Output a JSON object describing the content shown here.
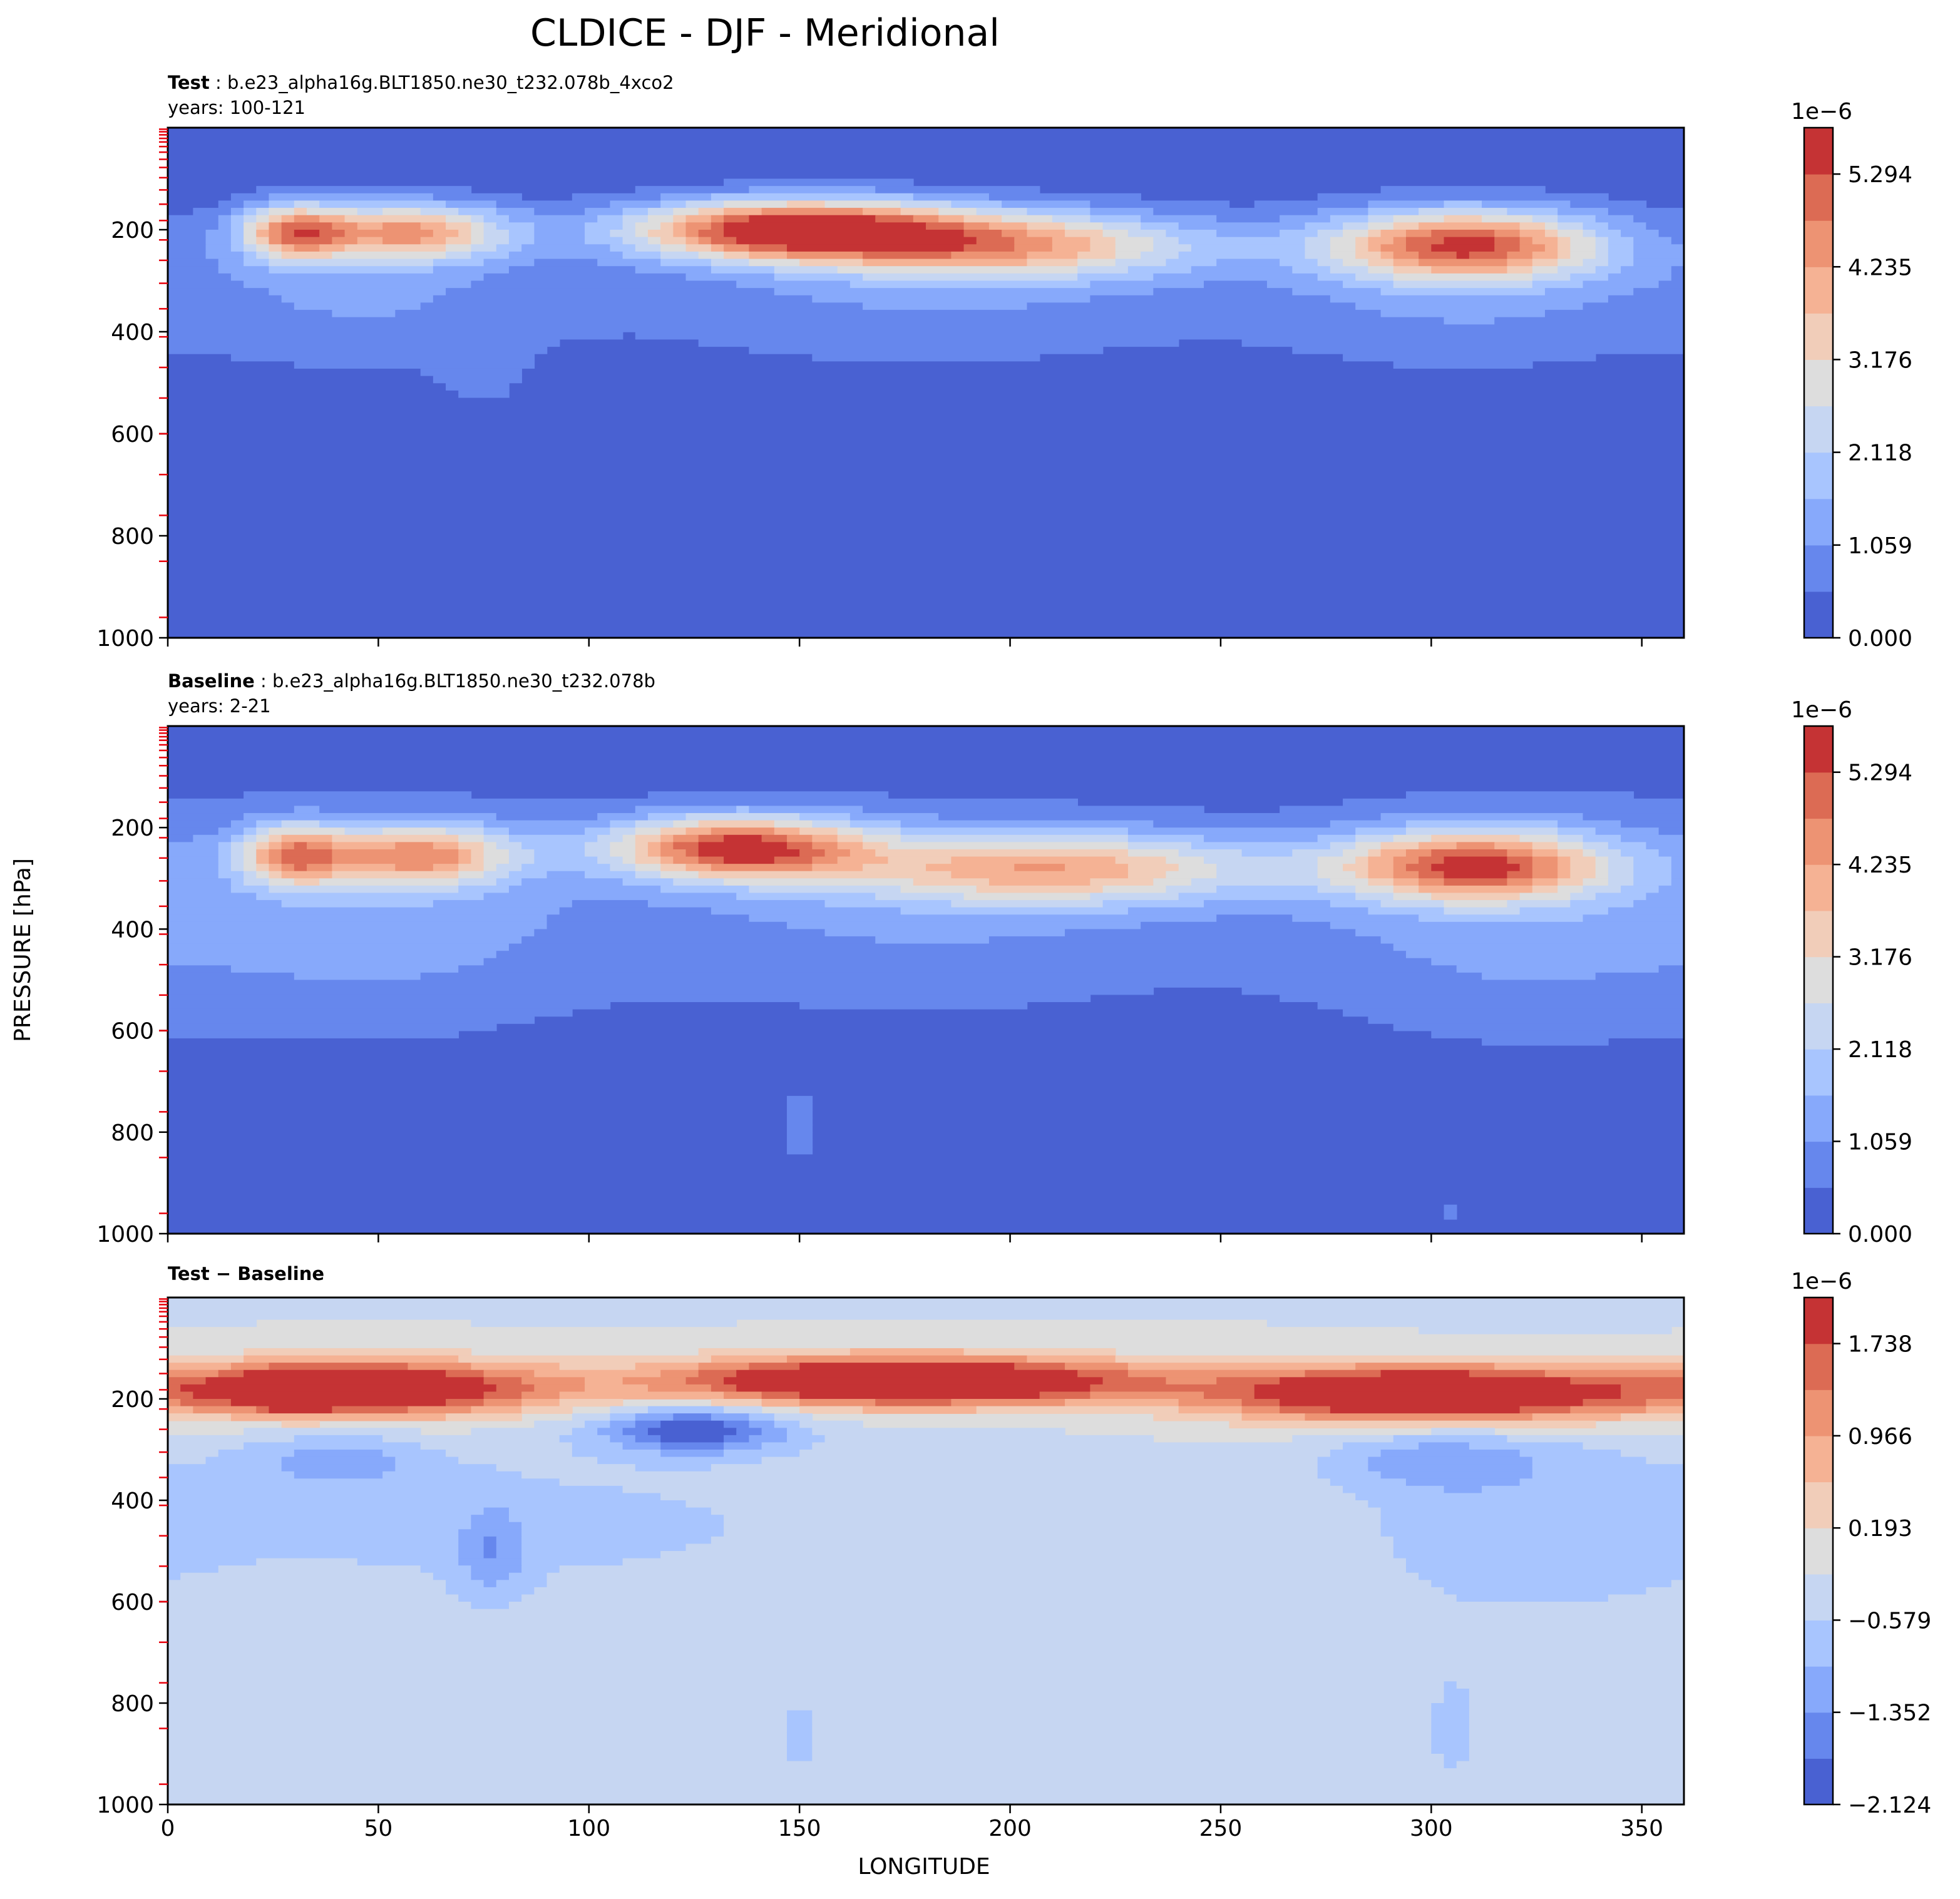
{
  "figure": {
    "title": "CLDICE - DJF - Meridional",
    "ylabel": "PRESSURE [hPa]",
    "xlabel": "LONGITUDE",
    "palette": [
      "#4961d2",
      "#6687ed",
      "#87a9fb",
      "#a8c5fe",
      "#c6d6f2",
      "#dddddd",
      "#f1cdb9",
      "#f5b294",
      "#ed9373",
      "#dc6b54",
      "#c53334"
    ]
  },
  "chart_data": [
    {
      "type": "contourf",
      "panel": "test",
      "title_bold": "Test",
      "title_rest": " : b.e23_alpha16g.BLT1850.ne30_t232.078b_4xco2",
      "subtitle": "years: 100-121",
      "x_ticks": [
        0,
        50,
        100,
        150,
        200,
        250,
        300,
        350
      ],
      "x_range": [
        0,
        360
      ],
      "y_ticks": [
        200,
        400,
        600,
        800,
        1000
      ],
      "y_range": [
        1000,
        0
      ],
      "y_inverted": true,
      "colorbar": {
        "exponent": "1e−6",
        "levels": 11,
        "min": 0.0,
        "max": 5.823,
        "ticks": [
          "0.000",
          "1.059",
          "2.118",
          "3.176",
          "4.235",
          "5.294"
        ]
      },
      "features": [
        {
          "x": 30,
          "p": 205,
          "rx": 13,
          "rp": 55,
          "peak": 7.3
        },
        {
          "x": 58,
          "p": 205,
          "rx": 22,
          "rp": 55,
          "peak": 7.2
        },
        {
          "x": 148,
          "p": 200,
          "rx": 38,
          "rp": 58,
          "peak": 10.5
        },
        {
          "x": 200,
          "p": 230,
          "rx": 45,
          "rp": 65,
          "peak": 6.6
        },
        {
          "x": 308,
          "p": 230,
          "rx": 32,
          "rp": 68,
          "peak": 8.9
        },
        {
          "x": 45,
          "p": 320,
          "rx": 50,
          "rp": 170,
          "peak": 2.0
        },
        {
          "x": 180,
          "p": 320,
          "rx": 80,
          "rp": 170,
          "peak": 2.0
        },
        {
          "x": 310,
          "p": 320,
          "rx": 50,
          "rp": 170,
          "peak": 2.0
        },
        {
          "x": 75,
          "p": 480,
          "rx": 10,
          "rp": 80,
          "peak": 1.0
        }
      ]
    },
    {
      "type": "contourf",
      "panel": "baseline",
      "title_bold": "Baseline",
      "title_rest": " : b.e23_alpha16g.BLT1850.ne30_t232.078b",
      "subtitle": "years: 2-21",
      "x_ticks": [
        0,
        50,
        100,
        150,
        200,
        250,
        300,
        350
      ],
      "x_range": [
        0,
        360
      ],
      "y_ticks": [
        200,
        400,
        600,
        800,
        1000
      ],
      "y_range": [
        1000,
        0
      ],
      "y_inverted": true,
      "colorbar": {
        "exponent": "1e−6",
        "levels": 11,
        "min": 0.0,
        "max": 5.823,
        "ticks": [
          "0.000",
          "1.059",
          "2.118",
          "3.176",
          "4.235",
          "5.294"
        ]
      },
      "features": [
        {
          "x": 30,
          "p": 255,
          "rx": 13,
          "rp": 60,
          "peak": 6.9
        },
        {
          "x": 60,
          "p": 255,
          "rx": 22,
          "rp": 60,
          "peak": 7.0
        },
        {
          "x": 135,
          "p": 240,
          "rx": 30,
          "rp": 62,
          "peak": 9.3
        },
        {
          "x": 210,
          "p": 280,
          "rx": 50,
          "rp": 70,
          "peak": 6.4
        },
        {
          "x": 310,
          "p": 275,
          "rx": 32,
          "rp": 70,
          "peak": 8.6
        },
        {
          "x": 50,
          "p": 380,
          "rx": 55,
          "rp": 250,
          "peak": 2.2
        },
        {
          "x": 180,
          "p": 360,
          "rx": 85,
          "rp": 230,
          "peak": 2.1
        },
        {
          "x": 320,
          "p": 380,
          "rx": 55,
          "rp": 260,
          "peak": 2.2
        },
        {
          "x": 150,
          "p": 800,
          "rx": 8,
          "rp": 120,
          "peak": 1.2
        },
        {
          "x": 305,
          "p": 960,
          "rx": 4,
          "rp": 60,
          "peak": 1.1
        }
      ]
    },
    {
      "type": "contourf",
      "panel": "difference",
      "title_bold": "Test − Baseline",
      "title_rest": "",
      "subtitle": "",
      "x_ticks": [
        0,
        50,
        100,
        150,
        200,
        250,
        300,
        350
      ],
      "x_range": [
        0,
        360
      ],
      "y_ticks": [
        200,
        400,
        600,
        800,
        1000
      ],
      "y_range": [
        1000,
        0
      ],
      "y_inverted": true,
      "colorbar": {
        "exponent": "1e−6",
        "levels": 11,
        "min": -2.124,
        "max": 2.124,
        "ticks": [
          "−2.124",
          "−1.352",
          "−0.579",
          "0.193",
          "0.966",
          "1.738"
        ]
      },
      "features": [
        {
          "x": 45,
          "p": 180,
          "rx": 45,
          "rp": 55,
          "peak": 8.2
        },
        {
          "x": 30,
          "p": 185,
          "rx": 8,
          "rp": 30,
          "peak": 9.6
        },
        {
          "x": 175,
          "p": 165,
          "rx": 55,
          "rp": 48,
          "peak": 9.2
        },
        {
          "x": 300,
          "p": 190,
          "rx": 50,
          "rp": 55,
          "peak": 9.0
        },
        {
          "x": 125,
          "p": 260,
          "rx": 22,
          "rp": 45,
          "peak": -4.6
        },
        {
          "x": 40,
          "p": 320,
          "rx": 20,
          "rp": 50,
          "peak": -2.0
        },
        {
          "x": 300,
          "p": 320,
          "rx": 25,
          "rp": 60,
          "peak": -2.0
        },
        {
          "x": 77,
          "p": 500,
          "rx": 8,
          "rp": 90,
          "peak": -2.0
        },
        {
          "x": 80,
          "p": 450,
          "rx": 120,
          "rp": 200,
          "peak": -1.2
        },
        {
          "x": 320,
          "p": 450,
          "rx": 45,
          "rp": 220,
          "peak": -1.2
        },
        {
          "x": 150,
          "p": 870,
          "rx": 10,
          "rp": 120,
          "peak": -1.2
        },
        {
          "x": 305,
          "p": 860,
          "rx": 10,
          "rp": 160,
          "peak": -1.2
        }
      ]
    }
  ]
}
